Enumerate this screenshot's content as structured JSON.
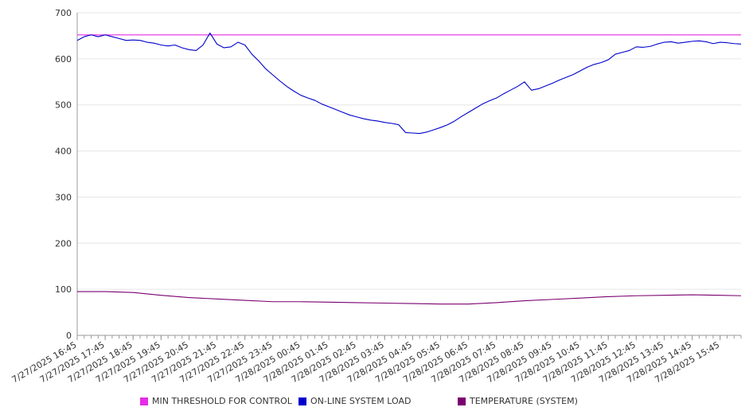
{
  "colors": {
    "threshold": "#e62be6",
    "load": "#0000cc",
    "temperature": "#7a0070",
    "grid": "#e6e6e6",
    "axis": "#999999",
    "text": "#333333"
  },
  "chart_data": {
    "type": "line",
    "title": "",
    "xlabel": "",
    "ylabel": "",
    "ylim": [
      0,
      700
    ],
    "yticks": [
      "0",
      "100",
      "200",
      "300",
      "400",
      "500",
      "600",
      "700"
    ],
    "grid": true,
    "legend_position": "bottom",
    "x_tick_labels": [
      "7/27/2025 16:45",
      "7/27/2025 17:45",
      "7/27/2025 18:45",
      "7/27/2025 19:45",
      "7/27/2025 20:45",
      "7/27/2025 21:45",
      "7/27/2025 22:45",
      "7/27/2025 23:45",
      "7/28/2025 00:45",
      "7/28/2025 01:45",
      "7/28/2025 02:45",
      "7/28/2025 03:45",
      "7/28/2025 04:45",
      "7/28/2025 05:45",
      "7/28/2025 06:45",
      "7/28/2025 07:45",
      "7/28/2025 08:45",
      "7/28/2025 09:45",
      "7/28/2025 10:45",
      "7/28/2025 11:45",
      "7/28/2025 12:45",
      "7/28/2025 13:45",
      "7/28/2025 14:45",
      "7/28/2025 15:45"
    ],
    "series": [
      {
        "name": "MIN THRESHOLD FOR CONTROL",
        "color_key": "threshold",
        "points": [
          [
            "7/27/2025 16:45",
            652
          ],
          [
            "7/28/2025 16:30",
            652
          ]
        ]
      },
      {
        "name": "ON-LINE SYSTEM LOAD",
        "color_key": "load",
        "points": [
          [
            "7/27/2025 16:45",
            640
          ],
          [
            "7/27/2025 17:00",
            648
          ],
          [
            "7/27/2025 17:15",
            652
          ],
          [
            "7/27/2025 17:30",
            648
          ],
          [
            "7/27/2025 17:45",
            652
          ],
          [
            "7/27/2025 18:00",
            648
          ],
          [
            "7/27/2025 18:15",
            644
          ],
          [
            "7/27/2025 18:30",
            640
          ],
          [
            "7/27/2025 18:45",
            641
          ],
          [
            "7/27/2025 19:00",
            640
          ],
          [
            "7/27/2025 19:15",
            636
          ],
          [
            "7/27/2025 19:30",
            634
          ],
          [
            "7/27/2025 19:45",
            630
          ],
          [
            "7/27/2025 20:00",
            628
          ],
          [
            "7/27/2025 20:15",
            630
          ],
          [
            "7/27/2025 20:30",
            624
          ],
          [
            "7/27/2025 20:45",
            620
          ],
          [
            "7/27/2025 21:00",
            618
          ],
          [
            "7/27/2025 21:15",
            630
          ],
          [
            "7/27/2025 21:30",
            656
          ],
          [
            "7/27/2025 21:45",
            632
          ],
          [
            "7/27/2025 22:00",
            624
          ],
          [
            "7/27/2025 22:15",
            626
          ],
          [
            "7/27/2025 22:30",
            636
          ],
          [
            "7/27/2025 22:45",
            630
          ],
          [
            "7/27/2025 23:00",
            610
          ],
          [
            "7/27/2025 23:15",
            595
          ],
          [
            "7/27/2025 23:30",
            578
          ],
          [
            "7/27/2025 23:45",
            565
          ],
          [
            "7/28/2025 00:00",
            552
          ],
          [
            "7/28/2025 00:15",
            540
          ],
          [
            "7/28/2025 00:30",
            530
          ],
          [
            "7/28/2025 00:45",
            521
          ],
          [
            "7/28/2025 01:00",
            515
          ],
          [
            "7/28/2025 01:15",
            510
          ],
          [
            "7/28/2025 01:30",
            502
          ],
          [
            "7/28/2025 01:45",
            496
          ],
          [
            "7/28/2025 02:00",
            490
          ],
          [
            "7/28/2025 02:15",
            484
          ],
          [
            "7/28/2025 02:30",
            478
          ],
          [
            "7/28/2025 02:45",
            474
          ],
          [
            "7/28/2025 03:00",
            470
          ],
          [
            "7/28/2025 03:15",
            467
          ],
          [
            "7/28/2025 03:30",
            465
          ],
          [
            "7/28/2025 03:45",
            462
          ],
          [
            "7/28/2025 04:00",
            460
          ],
          [
            "7/28/2025 04:15",
            457
          ],
          [
            "7/28/2025 04:30",
            440
          ],
          [
            "7/28/2025 04:45",
            439
          ],
          [
            "7/28/2025 05:00",
            438
          ],
          [
            "7/28/2025 05:15",
            441
          ],
          [
            "7/28/2025 05:30",
            446
          ],
          [
            "7/28/2025 05:45",
            451
          ],
          [
            "7/28/2025 06:00",
            457
          ],
          [
            "7/28/2025 06:15",
            465
          ],
          [
            "7/28/2025 06:30",
            475
          ],
          [
            "7/28/2025 06:45",
            484
          ],
          [
            "7/28/2025 07:00",
            493
          ],
          [
            "7/28/2025 07:15",
            502
          ],
          [
            "7/28/2025 07:30",
            509
          ],
          [
            "7/28/2025 07:45",
            515
          ],
          [
            "7/28/2025 08:00",
            524
          ],
          [
            "7/28/2025 08:15",
            532
          ],
          [
            "7/28/2025 08:30",
            540
          ],
          [
            "7/28/2025 08:45",
            550
          ],
          [
            "7/28/2025 09:00",
            532
          ],
          [
            "7/28/2025 09:15",
            535
          ],
          [
            "7/28/2025 09:30",
            541
          ],
          [
            "7/28/2025 09:45",
            547
          ],
          [
            "7/28/2025 10:00",
            554
          ],
          [
            "7/28/2025 10:15",
            560
          ],
          [
            "7/28/2025 10:30",
            566
          ],
          [
            "7/28/2025 10:45",
            574
          ],
          [
            "7/28/2025 11:00",
            582
          ],
          [
            "7/28/2025 11:15",
            588
          ],
          [
            "7/28/2025 11:30",
            592
          ],
          [
            "7/28/2025 11:45",
            598
          ],
          [
            "7/28/2025 12:00",
            610
          ],
          [
            "7/28/2025 12:15",
            614
          ],
          [
            "7/28/2025 12:30",
            618
          ],
          [
            "7/28/2025 12:45",
            626
          ],
          [
            "7/28/2025 13:00",
            625
          ],
          [
            "7/28/2025 13:15",
            627
          ],
          [
            "7/28/2025 13:30",
            632
          ],
          [
            "7/28/2025 13:45",
            636
          ],
          [
            "7/28/2025 14:00",
            637
          ],
          [
            "7/28/2025 14:15",
            634
          ],
          [
            "7/28/2025 14:30",
            636
          ],
          [
            "7/28/2025 14:45",
            638
          ],
          [
            "7/28/2025 15:00",
            639
          ],
          [
            "7/28/2025 15:15",
            637
          ],
          [
            "7/28/2025 15:30",
            633
          ],
          [
            "7/28/2025 15:45",
            636
          ],
          [
            "7/28/2025 16:00",
            635
          ],
          [
            "7/28/2025 16:15",
            633
          ],
          [
            "7/28/2025 16:30",
            632
          ]
        ]
      },
      {
        "name": "TEMPERATURE (SYSTEM)",
        "color_key": "temperature",
        "points": [
          [
            "7/27/2025 16:45",
            95
          ],
          [
            "7/27/2025 17:45",
            95
          ],
          [
            "7/27/2025 18:45",
            93
          ],
          [
            "7/27/2025 19:45",
            87
          ],
          [
            "7/27/2025 20:45",
            82
          ],
          [
            "7/27/2025 21:45",
            79
          ],
          [
            "7/27/2025 22:45",
            76
          ],
          [
            "7/27/2025 23:45",
            73
          ],
          [
            "7/28/2025 00:45",
            73
          ],
          [
            "7/28/2025 01:45",
            72
          ],
          [
            "7/28/2025 02:45",
            71
          ],
          [
            "7/28/2025 03:45",
            70
          ],
          [
            "7/28/2025 04:45",
            69
          ],
          [
            "7/28/2025 05:45",
            68
          ],
          [
            "7/28/2025 06:45",
            68
          ],
          [
            "7/28/2025 07:45",
            71
          ],
          [
            "7/28/2025 08:45",
            75
          ],
          [
            "7/28/2025 09:45",
            78
          ],
          [
            "7/28/2025 10:45",
            81
          ],
          [
            "7/28/2025 11:45",
            84
          ],
          [
            "7/28/2025 12:45",
            86
          ],
          [
            "7/28/2025 13:45",
            87
          ],
          [
            "7/28/2025 14:45",
            88
          ],
          [
            "7/28/2025 15:45",
            87
          ],
          [
            "7/28/2025 16:30",
            86
          ]
        ]
      }
    ]
  }
}
